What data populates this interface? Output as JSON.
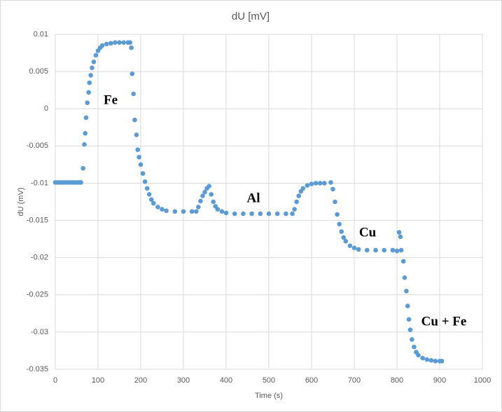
{
  "chart_data": {
    "type": "scatter",
    "title": "dU [mV]",
    "x_label": "Time (s)",
    "y_label": "dU (mV)",
    "color": "#5b9bd5",
    "grid": true,
    "xlim": [
      0,
      1000
    ],
    "xticks": [
      0,
      100,
      200,
      300,
      400,
      500,
      600,
      700,
      800,
      900,
      1000
    ],
    "ylim": [
      -0.035,
      0.01
    ],
    "yticks": [
      0.01,
      0.005,
      0,
      -0.005,
      -0.01,
      -0.015,
      -0.02,
      -0.025,
      -0.03,
      -0.035
    ],
    "annotations": [
      "Fe",
      "Al",
      "Cu",
      "Cu + Fe"
    ],
    "x": [
      0,
      5,
      10,
      15,
      20,
      25,
      30,
      35,
      40,
      45,
      50,
      55,
      60,
      65,
      68,
      70,
      72,
      75,
      78,
      80,
      83,
      86,
      90,
      95,
      100,
      105,
      110,
      120,
      130,
      140,
      150,
      160,
      170,
      175,
      178,
      180,
      183,
      186,
      190,
      193,
      196,
      200,
      205,
      210,
      215,
      220,
      225,
      230,
      240,
      250,
      260,
      280,
      300,
      320,
      330,
      335,
      340,
      345,
      350,
      355,
      360,
      365,
      370,
      375,
      380,
      390,
      400,
      420,
      440,
      460,
      480,
      500,
      520,
      540,
      555,
      560,
      565,
      570,
      575,
      580,
      590,
      600,
      610,
      620,
      630,
      645,
      650,
      655,
      660,
      665,
      670,
      675,
      680,
      690,
      700,
      710,
      730,
      750,
      770,
      790,
      800,
      805,
      808,
      810,
      815,
      818,
      822,
      825,
      828,
      831,
      835,
      840,
      845,
      850,
      860,
      870,
      880,
      890,
      900,
      905
    ],
    "y": [
      -0.0099,
      -0.0099,
      -0.0099,
      -0.0099,
      -0.0099,
      -0.0099,
      -0.0099,
      -0.0099,
      -0.0099,
      -0.0099,
      -0.0099,
      -0.0099,
      -0.0099,
      -0.008,
      -0.0048,
      -0.0033,
      -0.0012,
      0.0008,
      0.0022,
      0.0035,
      0.0045,
      0.0055,
      0.0063,
      0.0072,
      0.0078,
      0.0082,
      0.0085,
      0.0087,
      0.0088,
      0.0089,
      0.0089,
      0.0089,
      0.0089,
      0.0089,
      0.0082,
      0.0047,
      0.002,
      -0.0015,
      -0.0035,
      -0.0055,
      -0.0065,
      -0.0075,
      -0.0087,
      -0.0098,
      -0.0107,
      -0.0115,
      -0.0122,
      -0.0127,
      -0.0132,
      -0.0135,
      -0.0137,
      -0.0138,
      -0.0138,
      -0.0138,
      -0.0138,
      -0.0132,
      -0.0124,
      -0.0117,
      -0.0112,
      -0.0107,
      -0.0104,
      -0.0115,
      -0.0125,
      -0.0131,
      -0.0135,
      -0.0138,
      -0.014,
      -0.0141,
      -0.0141,
      -0.0141,
      -0.0141,
      -0.0141,
      -0.0141,
      -0.0141,
      -0.0141,
      -0.0135,
      -0.0125,
      -0.0117,
      -0.0111,
      -0.0107,
      -0.0103,
      -0.0101,
      -0.01,
      -0.01,
      -0.01,
      -0.0099,
      -0.0108,
      -0.0125,
      -0.0142,
      -0.0155,
      -0.0165,
      -0.0173,
      -0.0178,
      -0.0184,
      -0.0187,
      -0.0189,
      -0.019,
      -0.019,
      -0.019,
      -0.019,
      -0.0191,
      -0.0166,
      -0.0172,
      -0.019,
      -0.0205,
      -0.0227,
      -0.0245,
      -0.0265,
      -0.0283,
      -0.0297,
      -0.031,
      -0.032,
      -0.0327,
      -0.0331,
      -0.0335,
      -0.0337,
      -0.0338,
      -0.0339,
      -0.0339,
      -0.0339
    ]
  }
}
